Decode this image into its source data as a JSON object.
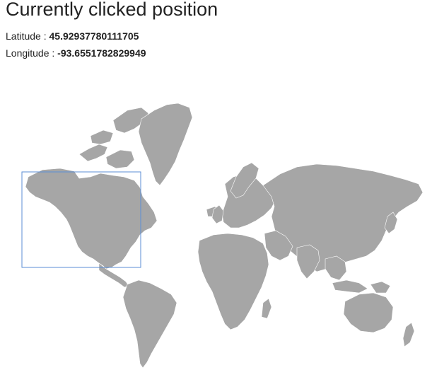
{
  "header": {
    "title": "Currently clicked position"
  },
  "position": {
    "latitude_label": "Latitude : ",
    "latitude_value": "45.92937780111705",
    "longitude_label": "Longitude : ",
    "longitude_value": "-93.6551782829949"
  },
  "map": {
    "land_color": "#a6a6a6",
    "border_color": "#ffffff",
    "selection_color": "#5b8ed6"
  }
}
